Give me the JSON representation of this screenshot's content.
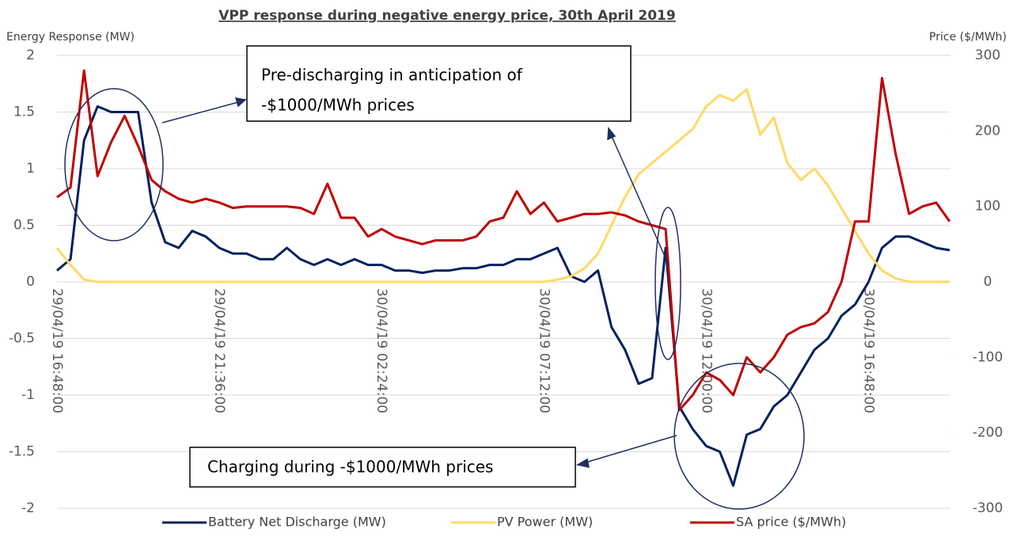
{
  "chart_data": {
    "type": "line",
    "title": "VPP response during negative energy price, 30th April 2019",
    "y_label": "Energy Response (MW)",
    "y2_label": "Price ($/MWh)",
    "annotations": [
      "Pre-discharging in anticipation of",
      "-$1000/MWh prices",
      "Charging during -$1000/MWh prices"
    ],
    "categories": [
      "29/04/19 16:48:00",
      null,
      null,
      null,
      null,
      null,
      null,
      null,
      null,
      null,
      null,
      null,
      "29/04/19 21:36:00",
      null,
      null,
      null,
      null,
      null,
      null,
      null,
      null,
      null,
      null,
      null,
      "30/04/19 02:24:00",
      null,
      null,
      null,
      null,
      null,
      null,
      null,
      null,
      null,
      null,
      null,
      "30/04/19 07:12:00",
      null,
      null,
      null,
      null,
      null,
      null,
      null,
      null,
      null,
      null,
      null,
      "30/04/19 12:00:00",
      null,
      null,
      null,
      null,
      null,
      null,
      null,
      null,
      null,
      null,
      null,
      "30/04/19 16:48:00",
      null,
      null,
      null,
      null,
      null,
      null
    ],
    "ylim": [
      -2,
      2
    ],
    "yticks": [
      -2,
      -1.5,
      -1,
      -0.5,
      0,
      0.5,
      1,
      1.5,
      2
    ],
    "y2lim": [
      -300,
      300
    ],
    "y2ticks": [
      -300,
      -200,
      -100,
      0,
      100,
      200,
      300
    ],
    "grid": true,
    "legend": "bottom",
    "series": [
      {
        "name": "Battery Net Discharge (MW)",
        "color": "#002060",
        "values": [
          0.1,
          0.2,
          1.25,
          1.55,
          1.5,
          1.5,
          1.5,
          0.7,
          0.35,
          0.3,
          0.45,
          0.4,
          0.3,
          0.25,
          0.25,
          0.2,
          0.2,
          0.3,
          0.2,
          0.15,
          0.2,
          0.15,
          0.2,
          0.15,
          0.15,
          0.1,
          0.1,
          0.08,
          0.1,
          0.1,
          0.12,
          0.12,
          0.15,
          0.15,
          0.2,
          0.2,
          0.25,
          0.3,
          0.05,
          0,
          0.1,
          -0.4,
          -0.6,
          -0.9,
          -0.85,
          0.3,
          -1.1,
          -1.3,
          -1.45,
          -1.5,
          -1.8,
          -1.35,
          -1.3,
          -1.1,
          -1,
          -0.8,
          -0.6,
          -0.5,
          -0.3,
          -0.2,
          0,
          0.3,
          0.4,
          0.4,
          0.35,
          0.3,
          0.28
        ]
      },
      {
        "name": "PV Power (MW)",
        "color": "#FFD966",
        "values": [
          0.3,
          0.15,
          0.02,
          0,
          0,
          0,
          0,
          0,
          0,
          0,
          0,
          0,
          0,
          0,
          0,
          0,
          0,
          0,
          0,
          0,
          0,
          0,
          0,
          0,
          0,
          0,
          0,
          0,
          0,
          0,
          0,
          0,
          0,
          0,
          0,
          0,
          0,
          0.02,
          0.05,
          0.12,
          0.25,
          0.5,
          0.75,
          0.95,
          1.05,
          1.15,
          1.25,
          1.35,
          1.55,
          1.65,
          1.6,
          1.7,
          1.3,
          1.45,
          1.05,
          0.9,
          1,
          0.85,
          0.65,
          0.45,
          0.25,
          0.1,
          0.03,
          0,
          0,
          0,
          0
        ]
      },
      {
        "name": "SA price ($/MWh)",
        "color": "#C00000",
        "axis": "y2",
        "values": [
          112,
          125,
          280,
          140,
          185,
          220,
          180,
          135,
          120,
          110,
          105,
          110,
          105,
          98,
          100,
          100,
          100,
          100,
          98,
          90,
          130,
          85,
          85,
          60,
          70,
          60,
          55,
          50,
          55,
          55,
          55,
          60,
          80,
          85,
          120,
          90,
          105,
          80,
          85,
          90,
          90,
          92,
          88,
          80,
          75,
          70,
          -170,
          -150,
          -120,
          -130,
          -150,
          -100,
          -120,
          -100,
          -70,
          -60,
          -55,
          -40,
          0,
          80,
          80,
          270,
          170,
          90,
          100,
          105,
          80
        ]
      }
    ]
  }
}
